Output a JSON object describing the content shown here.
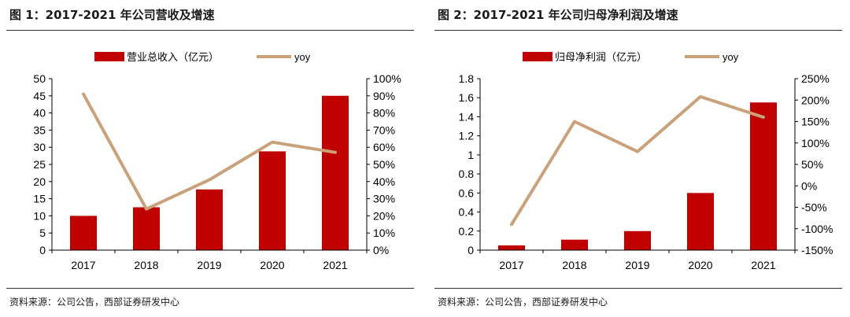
{
  "colors": {
    "bar": "#C00000",
    "line": "#C9A27C",
    "axis": "#000000"
  },
  "sources": {
    "left": "资料来源：公司公告，西部证券研发中心",
    "right": "资料来源：公司公告，西部证券研发中心"
  },
  "chart_data": [
    {
      "type": "bar",
      "title": "图 1：2017-2021 年公司营收及增速",
      "categories": [
        "2017",
        "2018",
        "2019",
        "2020",
        "2021"
      ],
      "series": [
        {
          "name": "营业总收入（亿元）",
          "type": "bar",
          "axis": "left",
          "values": [
            10,
            12.5,
            17.7,
            28.8,
            45
          ]
        },
        {
          "name": "yoy",
          "type": "line",
          "axis": "right",
          "values": [
            0.91,
            0.24,
            0.41,
            0.63,
            0.57
          ]
        }
      ],
      "yleft": {
        "min": 0,
        "max": 50,
        "step": 5,
        "ticks": [
          "0",
          "5",
          "10",
          "15",
          "20",
          "25",
          "30",
          "35",
          "40",
          "45",
          "50"
        ]
      },
      "yright": {
        "min": 0,
        "max": 1.0,
        "step": 0.1,
        "ticks": [
          "0%",
          "10%",
          "20%",
          "30%",
          "40%",
          "50%",
          "60%",
          "70%",
          "80%",
          "90%",
          "100%"
        ]
      },
      "legend": "top-center"
    },
    {
      "type": "bar",
      "title": "图 2：2017-2021 年公司归母净利润及增速",
      "categories": [
        "2017",
        "2018",
        "2019",
        "2020",
        "2021"
      ],
      "series": [
        {
          "name": "归母净利润（亿元）",
          "type": "bar",
          "axis": "left",
          "values": [
            0.05,
            0.11,
            0.2,
            0.6,
            1.55
          ]
        },
        {
          "name": "yoy",
          "type": "line",
          "axis": "right",
          "values": [
            -0.9,
            1.5,
            0.8,
            2.08,
            1.6
          ]
        }
      ],
      "yleft": {
        "min": 0,
        "max": 1.8,
        "step": 0.2,
        "ticks": [
          "0",
          "0.2",
          "0.4",
          "0.6",
          "0.8",
          "1",
          "1.2",
          "1.4",
          "1.6",
          "1.8"
        ]
      },
      "yright": {
        "min": -1.5,
        "max": 2.5,
        "step": 0.5,
        "ticks": [
          "-150%",
          "-100%",
          "-50%",
          "0%",
          "50%",
          "100%",
          "150%",
          "200%",
          "250%"
        ]
      },
      "legend": "top-center"
    }
  ]
}
